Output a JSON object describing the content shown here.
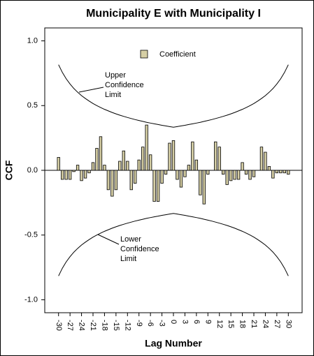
{
  "chart_data": {
    "type": "bar",
    "title": "Municipality E with Municipality I",
    "x_label": "Lag Number",
    "y_label": "CCF",
    "x": [
      -30,
      -29,
      -28,
      -27,
      -26,
      -25,
      -24,
      -23,
      -22,
      -21,
      -20,
      -19,
      -18,
      -17,
      -16,
      -15,
      -14,
      -13,
      -12,
      -11,
      -10,
      -9,
      -8,
      -7,
      -6,
      -5,
      -4,
      -3,
      -2,
      -1,
      0,
      1,
      2,
      3,
      4,
      5,
      6,
      7,
      8,
      9,
      10,
      11,
      12,
      13,
      14,
      15,
      16,
      17,
      18,
      19,
      20,
      21,
      22,
      23,
      24,
      25,
      26,
      27,
      28,
      29,
      30
    ],
    "series": [
      {
        "name": "Coefficient",
        "color": "#d6cfa5",
        "values": [
          0.1,
          -0.07,
          -0.07,
          -0.07,
          -0.01,
          0.04,
          -0.08,
          -0.06,
          -0.02,
          0.06,
          0.17,
          0.26,
          0.04,
          -0.15,
          -0.2,
          -0.15,
          0.07,
          0.15,
          0.07,
          -0.15,
          -0.1,
          0.08,
          0.18,
          0.35,
          0.12,
          -0.24,
          -0.24,
          -0.1,
          -0.03,
          0.21,
          0.23,
          -0.07,
          -0.13,
          -0.05,
          0.04,
          0.22,
          0.08,
          -0.19,
          -0.26,
          -0.03,
          0.0,
          0.22,
          0.18,
          -0.03,
          -0.11,
          -0.08,
          -0.07,
          -0.07,
          0.06,
          -0.03,
          -0.07,
          -0.05,
          0.0,
          0.18,
          0.14,
          0.03,
          -0.06,
          -0.02,
          -0.02,
          -0.02,
          -0.03
        ]
      }
    ],
    "confidence_limits": {
      "color": "#000000",
      "upper": [
        0.816,
        0.756,
        0.707,
        0.667,
        0.632,
        0.603,
        0.577,
        0.555,
        0.535,
        0.516,
        0.5,
        0.485,
        0.471,
        0.459,
        0.447,
        0.436,
        0.426,
        0.417,
        0.408,
        0.4,
        0.392,
        0.385,
        0.378,
        0.371,
        0.365,
        0.359,
        0.354,
        0.348,
        0.343,
        0.338,
        0.333,
        0.338,
        0.343,
        0.348,
        0.354,
        0.359,
        0.365,
        0.371,
        0.378,
        0.385,
        0.392,
        0.4,
        0.408,
        0.417,
        0.426,
        0.436,
        0.447,
        0.459,
        0.471,
        0.485,
        0.5,
        0.516,
        0.535,
        0.555,
        0.577,
        0.603,
        0.632,
        0.667,
        0.707,
        0.756,
        0.816
      ],
      "lower": [
        -0.816,
        -0.756,
        -0.707,
        -0.667,
        -0.632,
        -0.603,
        -0.577,
        -0.555,
        -0.535,
        -0.516,
        -0.5,
        -0.485,
        -0.471,
        -0.459,
        -0.447,
        -0.436,
        -0.426,
        -0.417,
        -0.408,
        -0.4,
        -0.392,
        -0.385,
        -0.378,
        -0.371,
        -0.365,
        -0.359,
        -0.354,
        -0.348,
        -0.343,
        -0.338,
        -0.333,
        -0.338,
        -0.343,
        -0.348,
        -0.354,
        -0.359,
        -0.365,
        -0.371,
        -0.378,
        -0.385,
        -0.392,
        -0.4,
        -0.408,
        -0.417,
        -0.426,
        -0.436,
        -0.447,
        -0.459,
        -0.471,
        -0.485,
        -0.5,
        -0.516,
        -0.535,
        -0.555,
        -0.577,
        -0.603,
        -0.632,
        -0.667,
        -0.707,
        -0.756,
        -0.816
      ]
    },
    "annotations": [
      {
        "lines": [
          "Upper",
          "Confidence",
          "Limit"
        ]
      },
      {
        "lines": [
          "Lower",
          "Confidence",
          "Limit"
        ]
      }
    ],
    "xlim": [
      -33.6,
      33.6
    ],
    "ylim": [
      -1.1,
      1.1
    ],
    "xticks": [
      -30,
      -27,
      -24,
      -21,
      -18,
      -15,
      -12,
      -9,
      -6,
      -3,
      0,
      3,
      6,
      9,
      12,
      15,
      18,
      21,
      24,
      27,
      30
    ],
    "yticks": [
      {
        "value": -1,
        "label": "-1.0"
      },
      {
        "value": -0.5,
        "label": "-0.5"
      },
      {
        "value": 0,
        "label": "0.0"
      },
      {
        "value": 0.5,
        "label": "0.5"
      },
      {
        "value": 1,
        "label": "1.0"
      }
    ],
    "legend": "top"
  }
}
